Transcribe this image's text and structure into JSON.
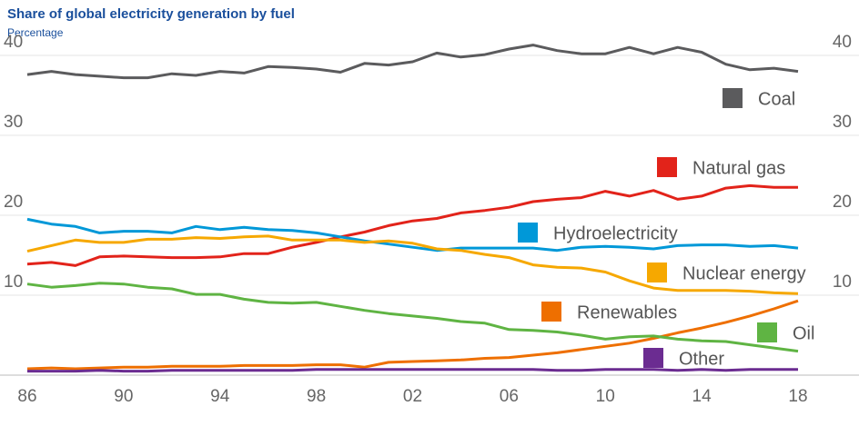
{
  "chart_data": {
    "type": "line",
    "title": "Share of global electricity generation by fuel",
    "subtitle": "Percentage",
    "categories": [
      "86",
      null,
      null,
      null,
      "90",
      null,
      null,
      null,
      "94",
      null,
      null,
      null,
      "98",
      null,
      null,
      null,
      "02",
      null,
      null,
      null,
      "06",
      null,
      null,
      null,
      "10",
      null,
      null,
      null,
      "14",
      null,
      null,
      null,
      "18"
    ],
    "ylim": [
      0,
      45
    ],
    "yticks": [
      10,
      20,
      30,
      40
    ],
    "grid": true,
    "series": [
      {
        "name": "Coal",
        "color": "#5b5b5d",
        "values": [
          37.6,
          38.0,
          37.6,
          37.4,
          37.2,
          37.2,
          37.7,
          37.5,
          38.0,
          37.8,
          38.6,
          38.5,
          38.3,
          37.9,
          39.0,
          38.8,
          39.2,
          40.3,
          39.8,
          40.1,
          40.8,
          41.3,
          40.6,
          40.2,
          40.2,
          41.0,
          40.2,
          41.0,
          40.4,
          38.9,
          38.2,
          38.4,
          38.0
        ]
      },
      {
        "name": "Natural gas",
        "color": "#e2231a",
        "values": [
          13.9,
          14.1,
          13.7,
          14.8,
          14.9,
          14.8,
          14.7,
          14.7,
          14.8,
          15.2,
          15.2,
          16.0,
          16.6,
          17.3,
          17.9,
          18.7,
          19.3,
          19.6,
          20.3,
          20.6,
          21.0,
          21.7,
          22.0,
          22.2,
          23.0,
          22.4,
          23.1,
          22.0,
          22.4,
          23.4,
          23.7,
          23.5,
          23.5
        ]
      },
      {
        "name": "Hydroelectricity",
        "color": "#0098d8",
        "values": [
          19.5,
          18.9,
          18.6,
          17.8,
          18.0,
          18.0,
          17.8,
          18.6,
          18.2,
          18.5,
          18.2,
          18.1,
          17.8,
          17.3,
          16.8,
          16.4,
          16.0,
          15.6,
          15.9,
          15.9,
          15.9,
          15.9,
          15.6,
          16.0,
          16.1,
          16.0,
          15.8,
          16.2,
          16.3,
          16.3,
          16.1,
          16.2,
          15.9
        ]
      },
      {
        "name": "Nuclear energy",
        "color": "#f6a800",
        "values": [
          15.5,
          16.2,
          16.9,
          16.6,
          16.6,
          17.0,
          17.0,
          17.2,
          17.1,
          17.3,
          17.4,
          16.9,
          16.9,
          16.9,
          16.6,
          16.8,
          16.5,
          15.8,
          15.6,
          15.1,
          14.7,
          13.8,
          13.5,
          13.4,
          12.9,
          11.8,
          10.9,
          10.6,
          10.6,
          10.6,
          10.5,
          10.3,
          10.2
        ]
      },
      {
        "name": "Renewables",
        "color": "#ee6f00",
        "values": [
          0.8,
          0.9,
          0.8,
          0.9,
          1.0,
          1.0,
          1.1,
          1.1,
          1.1,
          1.2,
          1.2,
          1.2,
          1.3,
          1.3,
          1.0,
          1.6,
          1.7,
          1.8,
          1.9,
          2.1,
          2.2,
          2.5,
          2.8,
          3.2,
          3.6,
          4.0,
          4.6,
          5.3,
          5.9,
          6.6,
          7.4,
          8.3,
          9.3
        ]
      },
      {
        "name": "Oil",
        "color": "#5fb443",
        "values": [
          11.4,
          11.0,
          11.2,
          11.5,
          11.4,
          11.0,
          10.8,
          10.1,
          10.1,
          9.5,
          9.1,
          9.0,
          9.1,
          8.6,
          8.1,
          7.7,
          7.4,
          7.1,
          6.7,
          6.5,
          5.7,
          5.6,
          5.4,
          5.0,
          4.5,
          4.8,
          4.9,
          4.5,
          4.3,
          4.2,
          3.8,
          3.4,
          3.0
        ]
      },
      {
        "name": "Other",
        "color": "#6b2c91",
        "values": [
          0.5,
          0.5,
          0.5,
          0.6,
          0.5,
          0.5,
          0.6,
          0.6,
          0.6,
          0.6,
          0.6,
          0.6,
          0.7,
          0.7,
          0.7,
          0.7,
          0.7,
          0.7,
          0.7,
          0.7,
          0.7,
          0.7,
          0.6,
          0.6,
          0.7,
          0.7,
          0.7,
          0.6,
          0.7,
          0.6,
          0.7,
          0.7,
          0.7
        ]
      }
    ]
  }
}
